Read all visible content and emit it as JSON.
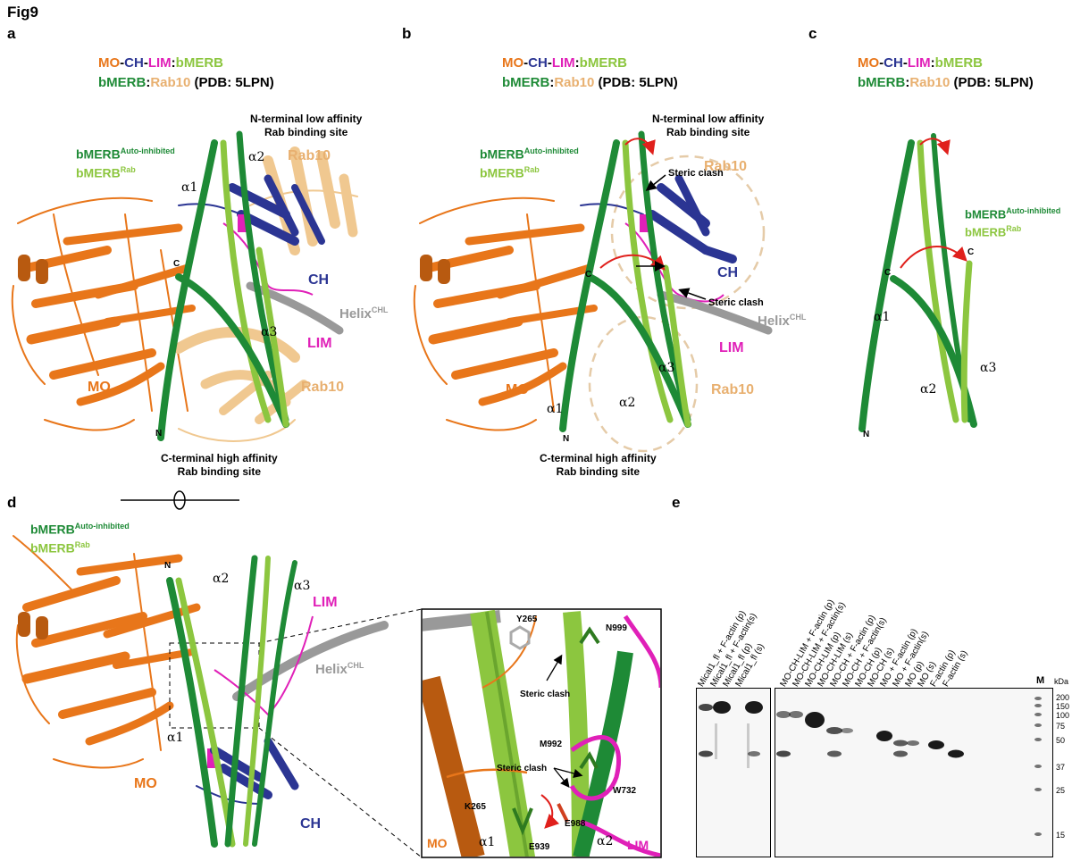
{
  "figure_title": "Fig9",
  "panel_letters": [
    "a",
    "b",
    "c",
    "d",
    "e"
  ],
  "colors": {
    "mo": "#e8761a",
    "ch": "#2b3593",
    "lim": "#e020b8",
    "bmerb_auto": "#1e8a36",
    "bmerb_rab": "#8cc63f",
    "rab10": "#f0c890",
    "helix": "#999999",
    "clash_arrow": "#e0201c"
  },
  "legend": {
    "mo": "MO",
    "ch": "CH",
    "lim": "LIM",
    "bmerb": "bMERB",
    "rab10": "Rab10",
    "pdb": "(PDB: 5LPN)",
    "sep_dash": "-",
    "sep_colon": ":"
  },
  "labels": {
    "bmerb_base": "bMERB",
    "auto_sup": "Auto-inhibited",
    "rab_sup": "Rab",
    "helix_base": "Helix",
    "chl_sup": "CHL",
    "mo": "MO",
    "ch": "CH",
    "lim": "LIM",
    "rab10": "Rab10",
    "n_site_1": "N-terminal low affinity",
    "n_site_2": "Rab binding site",
    "c_site_1": "C-terminal high affinity",
    "c_site_2": "Rab binding site",
    "steric_clash": "Steric clash",
    "alpha1": "α1",
    "alpha2": "α2",
    "alpha3": "α3",
    "n_term": "N",
    "c_term": "C"
  },
  "inset_residues": [
    "Y265",
    "N999",
    "M992",
    "W732",
    "K265",
    "E939",
    "E988"
  ],
  "gel": {
    "lanes": [
      "Mical1_fl + F-actin (p)",
      "Mical1_fl + F-actin(s)",
      "Mical1_fl (p)",
      "Mical1_fl (s)",
      "MO-CH-LIM + F-actin (p)",
      "MO-CH-LIM + F-actin(s)",
      "MO-CH-LIM (p)",
      "MO-CH-LIM (s)",
      "MO-CH + F-actin (p)",
      "MO-CH + F-actin(s)",
      "MO-CH (p)",
      "MO-CH (s)",
      "MO + F-actin (p)",
      "MO + F-actin(s)",
      "MO (p)",
      "MO (s)",
      "F-actin (p)",
      "F-actin (s)"
    ],
    "marker_lane": "M",
    "unit": "kDa",
    "markers": [
      "200",
      "150",
      "100",
      "75",
      "50",
      "37",
      "25",
      "15"
    ]
  }
}
